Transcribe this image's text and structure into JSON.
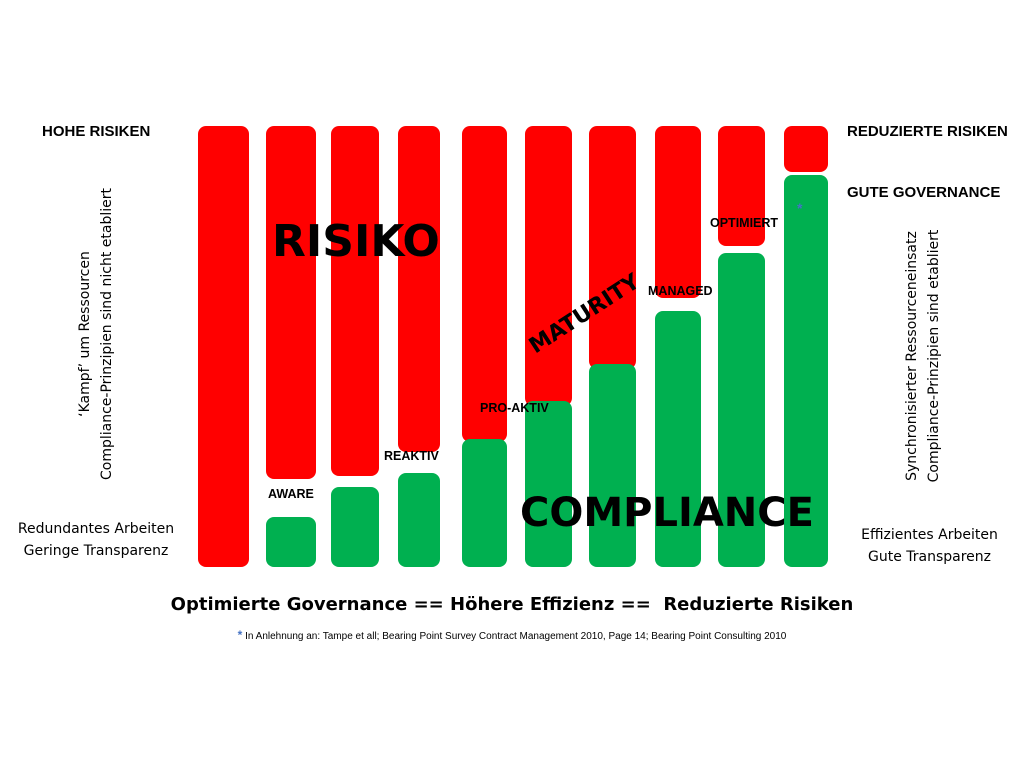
{
  "colors": {
    "risk": "#ff0000",
    "compliance": "#00b050",
    "star": "#4472c4"
  },
  "left": {
    "top_label": "HOHE RISIKEN",
    "vertical_line1": "‘Kampf’ um Ressourcen",
    "vertical_line2": "Compliance-Prinzipien sind nicht etabliert",
    "bottom_line1": "Redundantes Arbeiten",
    "bottom_line2": "Geringe Transparenz"
  },
  "right": {
    "top_label": "REDUZIERTE RISIKEN",
    "governance_label": "GUTE GOVERNANCE",
    "vertical_line1": "Synchronisierter Ressourceneinsatz",
    "vertical_line2": "Compliance-Prinzipien sind etabliert",
    "bottom_line1": "Effizientes Arbeiten",
    "bottom_line2": "Gute Transparenz"
  },
  "diagram": {
    "risk_label": "RISIKO",
    "compliance_label": "COMPLIANCE",
    "maturity_label": "MATURITY",
    "stages": [
      "AWARE",
      "REAKTIV",
      "PRO-AKTIV",
      "MANAGED",
      "OPTIMIERT"
    ],
    "star": "*"
  },
  "footer": {
    "headline": "Optimierte Governance == Höhere Effizienz ==  Reduzierte Risiken",
    "star": "*",
    "source": "In Anlehnung an: Tampe et all; Bearing Point Survey Contract Management 2010, Page 14; Bearing Point Consulting 2010"
  }
}
